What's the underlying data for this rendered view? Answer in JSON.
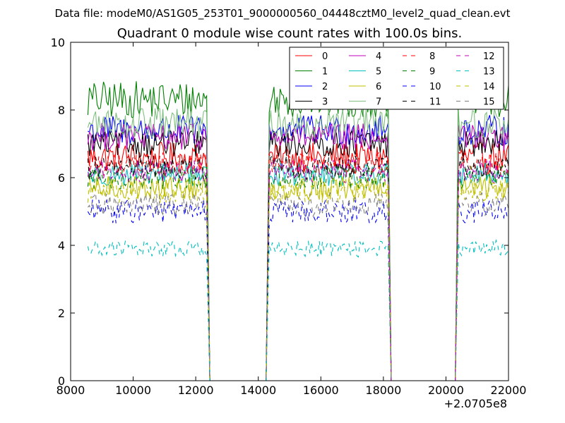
{
  "chart_data": {
    "type": "line",
    "suptitle": "Data file: modeM0/AS1G05_253T01_9000000560_04448cztM0_level2_quad_clean.evt",
    "title": "Quadrant 0 module wise count rates with 100.0s bins.",
    "xlabel": "",
    "ylabel": "",
    "x_offset_label": "+2.0705e8",
    "xlim": [
      8000,
      22000
    ],
    "ylim": [
      0,
      10
    ],
    "xticks": [
      8000,
      10000,
      12000,
      14000,
      16000,
      18000,
      20000,
      22000
    ],
    "yticks": [
      0,
      2,
      4,
      6,
      8,
      10
    ],
    "grid": false,
    "legend_position": "top-right",
    "legend_columns": 4,
    "segments": [
      {
        "start": 8550,
        "end": 12350
      },
      {
        "start": 14350,
        "end": 18150
      },
      {
        "start": 20400,
        "end": 22000
      }
    ],
    "x_step": 50,
    "series": [
      {
        "name": "0",
        "level": 6.6,
        "noise": 0.45,
        "color": "#ff0000",
        "dash": "solid"
      },
      {
        "name": "1",
        "level": 8.3,
        "noise": 0.55,
        "color": "#008000",
        "dash": "solid"
      },
      {
        "name": "2",
        "level": 7.4,
        "noise": 0.45,
        "color": "#0000ff",
        "dash": "solid"
      },
      {
        "name": "3",
        "level": 7.0,
        "noise": 0.4,
        "color": "#000000",
        "dash": "solid"
      },
      {
        "name": "4",
        "level": 7.2,
        "noise": 0.4,
        "color": "#bf00bf",
        "dash": "solid"
      },
      {
        "name": "5",
        "level": 6.1,
        "noise": 0.35,
        "color": "#00bfbf",
        "dash": "solid"
      },
      {
        "name": "6",
        "level": 5.7,
        "noise": 0.35,
        "color": "#bfbf00",
        "dash": "solid"
      },
      {
        "name": "7",
        "level": 7.6,
        "noise": 0.45,
        "color": "#7fbf7f",
        "dash": "solid"
      },
      {
        "name": "8",
        "level": 6.4,
        "noise": 0.35,
        "color": "#ff0000",
        "dash": "dashed"
      },
      {
        "name": "9",
        "level": 6.0,
        "noise": 0.35,
        "color": "#008000",
        "dash": "dashed"
      },
      {
        "name": "10",
        "level": 5.0,
        "noise": 0.35,
        "color": "#0000ff",
        "dash": "dashed"
      },
      {
        "name": "11",
        "level": 6.3,
        "noise": 0.35,
        "color": "#000000",
        "dash": "dashed"
      },
      {
        "name": "12",
        "level": 6.2,
        "noise": 0.35,
        "color": "#bf00bf",
        "dash": "dashed"
      },
      {
        "name": "13",
        "level": 3.9,
        "noise": 0.25,
        "color": "#00bfbf",
        "dash": "dashed"
      },
      {
        "name": "14",
        "level": 5.6,
        "noise": 0.35,
        "color": "#bfbf00",
        "dash": "dashed"
      },
      {
        "name": "15",
        "level": 5.2,
        "noise": 0.35,
        "color": "#808080",
        "dash": "dashed"
      }
    ]
  }
}
